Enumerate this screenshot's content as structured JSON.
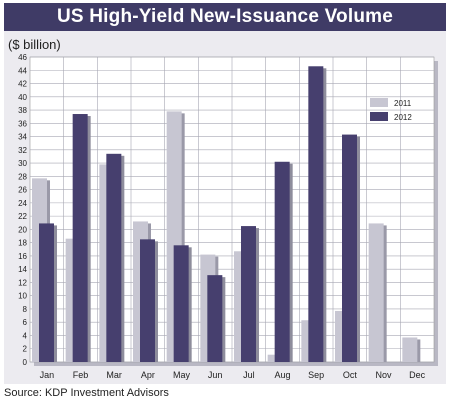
{
  "chart_data": {
    "type": "bar",
    "title": "US High-Yield New-Issuance Volume",
    "unit_label": "($ billion)",
    "source": "Source: KDP Investment Advisors",
    "categories": [
      "Jan",
      "Feb",
      "Mar",
      "Apr",
      "May",
      "Jun",
      "Jul",
      "Aug",
      "Sep",
      "Oct",
      "Nov",
      "Dec"
    ],
    "ylim": [
      0,
      46
    ],
    "y_ticks": [
      0,
      2,
      4,
      6,
      8,
      10,
      12,
      14,
      16,
      18,
      20,
      22,
      24,
      26,
      28,
      30,
      32,
      34,
      36,
      38,
      40,
      42,
      44,
      46
    ],
    "grid": true,
    "legend_position": "top-right",
    "series": [
      {
        "name": "2011",
        "color": "#c7c6d2",
        "values": [
          27.7,
          18.6,
          29.8,
          21.2,
          37.8,
          16.2,
          16.7,
          1.1,
          6.3,
          7.7,
          20.9,
          3.7
        ]
      },
      {
        "name": "2012",
        "color": "#463f6e",
        "values": [
          20.9,
          37.4,
          31.4,
          18.5,
          17.6,
          13.1,
          20.5,
          30.2,
          44.6,
          34.3,
          null,
          null
        ]
      }
    ]
  }
}
